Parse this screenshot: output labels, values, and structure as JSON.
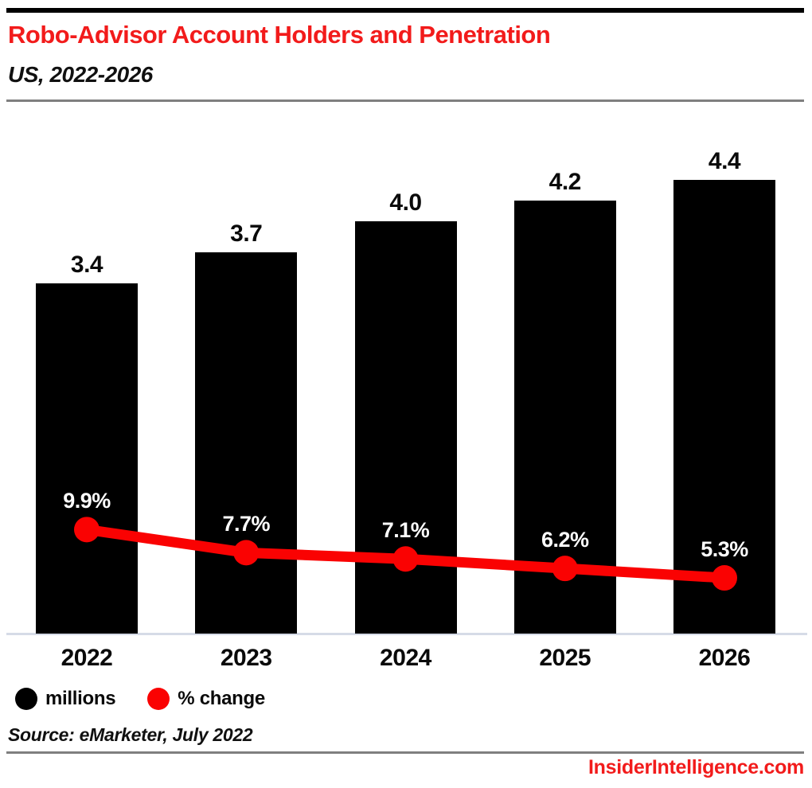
{
  "header": {
    "title": "Robo-Advisor Account Holders and Penetration",
    "subtitle": "US, 2022-2026"
  },
  "chart_data": {
    "type": "bar",
    "combo": "bar+line",
    "title": "Robo-Advisor Account Holders and Penetration",
    "subtitle": "US, 2022-2026",
    "categories": [
      "2022",
      "2023",
      "2024",
      "2025",
      "2026"
    ],
    "series": [
      {
        "name": "millions",
        "type": "bar",
        "color": "#000000",
        "values": [
          3.4,
          3.7,
          4.0,
          4.2,
          4.4
        ],
        "labels": [
          "3.4",
          "3.7",
          "4.0",
          "4.2",
          "4.4"
        ]
      },
      {
        "name": "% change",
        "type": "line",
        "color": "#fa0202",
        "values": [
          9.9,
          7.7,
          7.1,
          6.2,
          5.3
        ],
        "labels": [
          "9.9%",
          "7.7%",
          "7.1%",
          "6.2%",
          "5.3%"
        ]
      }
    ],
    "xlabel": "",
    "ylabel": "",
    "value_axis_visible": false,
    "grid": false,
    "legend_position": "bottom-left",
    "bar_value_labels_position": "above-bar",
    "line_value_labels_position": "above-point"
  },
  "legend": {
    "items": [
      {
        "label": "millions",
        "color": "#000000"
      },
      {
        "label": "% change",
        "color": "#fa0202"
      }
    ]
  },
  "source": "Source: eMarketer, July 2022",
  "footer": {
    "brand": "InsiderIntelligence.com"
  },
  "colors": {
    "accent_red": "#f21b1b",
    "line_red": "#fa0202",
    "bar_black": "#000000",
    "baseline_gray_blue": "#d6dbe7",
    "divider_gray": "#7f7f7f",
    "background": "#ffffff"
  }
}
